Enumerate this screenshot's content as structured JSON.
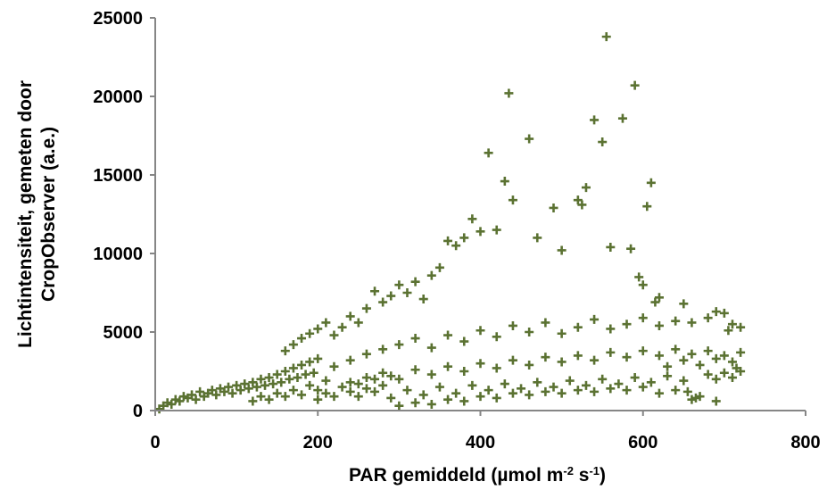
{
  "chart_data": {
    "type": "scatter",
    "xlabel": "PAR gemiddeld (µmol m",
    "xlabel_sup1": "-2",
    "xlabel_mid": " s",
    "xlabel_sup2": "-1",
    "xlabel_end": ")",
    "ylabel_line1": "Lichtintensiteit, gemeten door",
    "ylabel_line2": "CropObserver (a.e.)",
    "xlim": [
      0,
      800
    ],
    "ylim": [
      0,
      25000
    ],
    "x_ticks": [
      "0",
      "200",
      "400",
      "600",
      "800"
    ],
    "y_ticks": [
      "0",
      "5000",
      "10000",
      "15000",
      "20000",
      "25000"
    ],
    "grid": false,
    "marker": "plus",
    "color": "#5b7232",
    "series": [
      {
        "points": [
          [
            5,
            100
          ],
          [
            10,
            300
          ],
          [
            15,
            500
          ],
          [
            20,
            400
          ],
          [
            25,
            700
          ],
          [
            30,
            600
          ],
          [
            35,
            900
          ],
          [
            40,
            800
          ],
          [
            45,
            1000
          ],
          [
            50,
            700
          ],
          [
            55,
            1200
          ],
          [
            60,
            900
          ],
          [
            65,
            1100
          ],
          [
            70,
            1300
          ],
          [
            75,
            1000
          ],
          [
            80,
            1400
          ],
          [
            85,
            1200
          ],
          [
            90,
            1500
          ],
          [
            95,
            1100
          ],
          [
            100,
            1600
          ],
          [
            105,
            1300
          ],
          [
            110,
            1700
          ],
          [
            115,
            1400
          ],
          [
            120,
            1800
          ],
          [
            125,
            1500
          ],
          [
            130,
            2000
          ],
          [
            135,
            1600
          ],
          [
            140,
            2100
          ],
          [
            145,
            1700
          ],
          [
            150,
            2300
          ],
          [
            155,
            1800
          ],
          [
            160,
            2500
          ],
          [
            165,
            2000
          ],
          [
            170,
            2700
          ],
          [
            175,
            2100
          ],
          [
            180,
            2900
          ],
          [
            185,
            2300
          ],
          [
            190,
            3100
          ],
          [
            195,
            2400
          ],
          [
            200,
            3300
          ],
          [
            160,
            3800
          ],
          [
            170,
            4200
          ],
          [
            180,
            4600
          ],
          [
            190,
            4900
          ],
          [
            200,
            5200
          ],
          [
            210,
            5600
          ],
          [
            220,
            4800
          ],
          [
            230,
            5300
          ],
          [
            240,
            6000
          ],
          [
            250,
            5600
          ],
          [
            260,
            6500
          ],
          [
            270,
            7600
          ],
          [
            280,
            6900
          ],
          [
            290,
            7300
          ],
          [
            300,
            8000
          ],
          [
            310,
            7500
          ],
          [
            320,
            8200
          ],
          [
            330,
            7100
          ],
          [
            340,
            8600
          ],
          [
            350,
            9100
          ],
          [
            360,
            10800
          ],
          [
            370,
            10500
          ],
          [
            380,
            11000
          ],
          [
            390,
            12200
          ],
          [
            400,
            11400
          ],
          [
            410,
            16400
          ],
          [
            420,
            11500
          ],
          [
            430,
            14600
          ],
          [
            435,
            20200
          ],
          [
            440,
            13400
          ],
          [
            460,
            17300
          ],
          [
            470,
            11000
          ],
          [
            490,
            12900
          ],
          [
            500,
            10200
          ],
          [
            520,
            13400
          ],
          [
            525,
            13100
          ],
          [
            530,
            14200
          ],
          [
            540,
            18500
          ],
          [
            550,
            17100
          ],
          [
            555,
            23800
          ],
          [
            560,
            10400
          ],
          [
            575,
            18600
          ],
          [
            585,
            10300
          ],
          [
            590,
            20700
          ],
          [
            595,
            8500
          ],
          [
            600,
            8000
          ],
          [
            605,
            13000
          ],
          [
            610,
            14500
          ],
          [
            615,
            6900
          ],
          [
            620,
            7200
          ],
          [
            220,
            2800
          ],
          [
            240,
            3200
          ],
          [
            260,
            3600
          ],
          [
            280,
            3900
          ],
          [
            300,
            4200
          ],
          [
            320,
            4600
          ],
          [
            340,
            4000
          ],
          [
            360,
            4800
          ],
          [
            380,
            4400
          ],
          [
            400,
            5100
          ],
          [
            420,
            4700
          ],
          [
            440,
            5400
          ],
          [
            460,
            5000
          ],
          [
            480,
            5600
          ],
          [
            500,
            4900
          ],
          [
            520,
            5300
          ],
          [
            540,
            5800
          ],
          [
            560,
            5200
          ],
          [
            580,
            5500
          ],
          [
            600,
            5900
          ],
          [
            620,
            5400
          ],
          [
            640,
            5700
          ],
          [
            650,
            6800
          ],
          [
            660,
            5600
          ],
          [
            680,
            5900
          ],
          [
            690,
            6300
          ],
          [
            700,
            6200
          ],
          [
            705,
            5100
          ],
          [
            710,
            5500
          ],
          [
            720,
            5300
          ],
          [
            240,
            1800
          ],
          [
            260,
            2100
          ],
          [
            280,
            2400
          ],
          [
            300,
            2000
          ],
          [
            320,
            2600
          ],
          [
            340,
            2300
          ],
          [
            360,
            2800
          ],
          [
            380,
            2500
          ],
          [
            400,
            3000
          ],
          [
            420,
            2700
          ],
          [
            440,
            3200
          ],
          [
            460,
            2900
          ],
          [
            480,
            3400
          ],
          [
            500,
            3100
          ],
          [
            520,
            3500
          ],
          [
            540,
            3200
          ],
          [
            560,
            3700
          ],
          [
            580,
            3400
          ],
          [
            600,
            3800
          ],
          [
            620,
            3500
          ],
          [
            640,
            3900
          ],
          [
            660,
            3600
          ],
          [
            680,
            3800
          ],
          [
            700,
            3500
          ],
          [
            720,
            3700
          ],
          [
            710,
            3100
          ],
          [
            690,
            3300
          ],
          [
            670,
            2900
          ],
          [
            650,
            3200
          ],
          [
            630,
            2800
          ],
          [
            250,
            900
          ],
          [
            270,
            1200
          ],
          [
            290,
            800
          ],
          [
            310,
            1300
          ],
          [
            330,
            1000
          ],
          [
            350,
            1500
          ],
          [
            370,
            1100
          ],
          [
            390,
            1600
          ],
          [
            410,
            1300
          ],
          [
            430,
            1700
          ],
          [
            450,
            1400
          ],
          [
            470,
            1800
          ],
          [
            490,
            1500
          ],
          [
            510,
            1900
          ],
          [
            530,
            1600
          ],
          [
            550,
            2000
          ],
          [
            570,
            1700
          ],
          [
            590,
            2100
          ],
          [
            610,
            1800
          ],
          [
            630,
            2200
          ],
          [
            650,
            1900
          ],
          [
            655,
            1200
          ],
          [
            660,
            700
          ],
          [
            670,
            900
          ],
          [
            680,
            2300
          ],
          [
            690,
            2000
          ],
          [
            700,
            2400
          ],
          [
            710,
            2100
          ],
          [
            715,
            2700
          ],
          [
            720,
            2500
          ],
          [
            300,
            300
          ],
          [
            320,
            500
          ],
          [
            340,
            400
          ],
          [
            360,
            700
          ],
          [
            380,
            600
          ],
          [
            400,
            900
          ],
          [
            420,
            800
          ],
          [
            440,
            1100
          ],
          [
            460,
            1000
          ],
          [
            480,
            1200
          ],
          [
            500,
            1100
          ],
          [
            520,
            1300
          ],
          [
            540,
            1200
          ],
          [
            560,
            1400
          ],
          [
            580,
            1300
          ],
          [
            600,
            1500
          ],
          [
            620,
            1100
          ],
          [
            640,
            1300
          ],
          [
            665,
            800
          ],
          [
            690,
            600
          ],
          [
            200,
            700
          ],
          [
            210,
            1100
          ],
          [
            220,
            900
          ],
          [
            230,
            1500
          ],
          [
            240,
            1200
          ],
          [
            250,
            1700
          ],
          [
            260,
            1400
          ],
          [
            270,
            2000
          ],
          [
            280,
            1600
          ],
          [
            290,
            2200
          ],
          [
            120,
            600
          ],
          [
            130,
            900
          ],
          [
            140,
            700
          ],
          [
            150,
            1100
          ],
          [
            160,
            900
          ],
          [
            170,
            1300
          ],
          [
            180,
            1000
          ],
          [
            190,
            1600
          ],
          [
            200,
            1300
          ],
          [
            210,
            1900
          ]
        ]
      }
    ]
  }
}
